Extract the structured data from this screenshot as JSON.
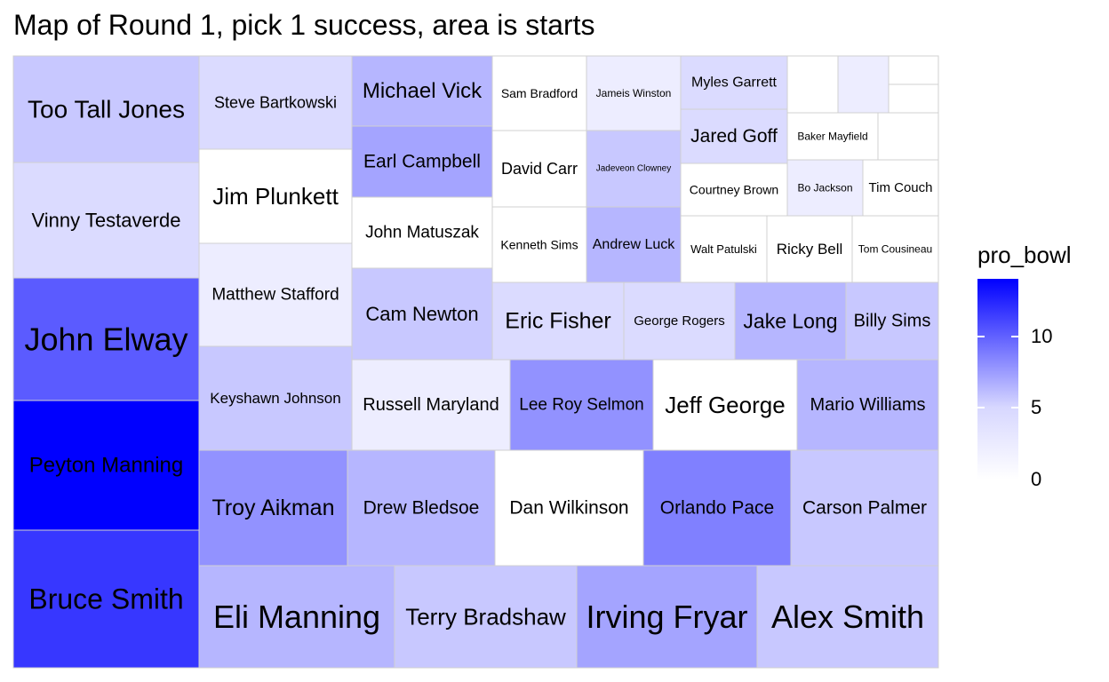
{
  "chart_data": {
    "type": "treemap",
    "title": "Map of Round 1, pick 1 success, area is starts",
    "area_measure": "starts",
    "color_variable": "pro_bowl",
    "legend": {
      "title": "pro_bowl",
      "placement": "right",
      "ticks": [
        "0",
        "5",
        "10"
      ],
      "range": [
        0,
        14
      ],
      "colors": {
        "low": "#ffffff",
        "high": "#0000ff"
      }
    },
    "tiles": [
      {
        "name": "Too Tall Jones",
        "pro_bowl": 3
      },
      {
        "name": "Vinny Testaverde",
        "pro_bowl": 2
      },
      {
        "name": "John Elway",
        "pro_bowl": 9
      },
      {
        "name": "Peyton Manning",
        "pro_bowl": 14
      },
      {
        "name": "Bruce Smith",
        "pro_bowl": 11
      },
      {
        "name": "Steve Bartkowski",
        "pro_bowl": 2
      },
      {
        "name": "Jim Plunkett",
        "pro_bowl": 0
      },
      {
        "name": "Matthew Stafford",
        "pro_bowl": 1
      },
      {
        "name": "Keyshawn Johnson",
        "pro_bowl": 3
      },
      {
        "name": "Michael Vick",
        "pro_bowl": 4
      },
      {
        "name": "Earl Campbell",
        "pro_bowl": 5
      },
      {
        "name": "John Matuszak",
        "pro_bowl": 0
      },
      {
        "name": "Cam Newton",
        "pro_bowl": 3
      },
      {
        "name": "Sam Bradford",
        "pro_bowl": 0
      },
      {
        "name": "Jameis Winston",
        "pro_bowl": 1
      },
      {
        "name": "David Carr",
        "pro_bowl": 0
      },
      {
        "name": "Jadeveon Clowney",
        "pro_bowl": 3
      },
      {
        "name": "Kenneth Sims",
        "pro_bowl": 0
      },
      {
        "name": "Andrew Luck",
        "pro_bowl": 4
      },
      {
        "name": "Myles Garrett",
        "pro_bowl": 2
      },
      {
        "name": "Jared Goff",
        "pro_bowl": 2
      },
      {
        "name": "Baker Mayfield",
        "pro_bowl": 0
      },
      {
        "name": "Courtney Brown",
        "pro_bowl": 0
      },
      {
        "name": "Bo Jackson",
        "pro_bowl": 1
      },
      {
        "name": "Tim Couch",
        "pro_bowl": 0
      },
      {
        "name": "Walt Patulski",
        "pro_bowl": 0
      },
      {
        "name": "Ricky Bell",
        "pro_bowl": 0
      },
      {
        "name": "Tom Cousineau",
        "pro_bowl": 0
      },
      {
        "name": "Eric Fisher",
        "pro_bowl": 2
      },
      {
        "name": "George Rogers",
        "pro_bowl": 2
      },
      {
        "name": "Jake Long",
        "pro_bowl": 4
      },
      {
        "name": "Billy Sims",
        "pro_bowl": 3
      },
      {
        "name": "Russell Maryland",
        "pro_bowl": 1
      },
      {
        "name": "Lee Roy Selmon",
        "pro_bowl": 6
      },
      {
        "name": "Jeff George",
        "pro_bowl": 0
      },
      {
        "name": "Mario Williams",
        "pro_bowl": 4
      },
      {
        "name": "Troy Aikman",
        "pro_bowl": 6
      },
      {
        "name": "Drew Bledsoe",
        "pro_bowl": 4
      },
      {
        "name": "Dan Wilkinson",
        "pro_bowl": 0
      },
      {
        "name": "Orlando Pace",
        "pro_bowl": 7
      },
      {
        "name": "Carson Palmer",
        "pro_bowl": 3
      },
      {
        "name": "Eli Manning",
        "pro_bowl": 4
      },
      {
        "name": "Terry Bradshaw",
        "pro_bowl": 3
      },
      {
        "name": "Irving Fryar",
        "pro_bowl": 5
      },
      {
        "name": "Alex Smith",
        "pro_bowl": 3
      },
      {
        "name": "",
        "pro_bowl": 0
      },
      {
        "name": "",
        "pro_bowl": 1
      },
      {
        "name": "",
        "pro_bowl": 0
      },
      {
        "name": "",
        "pro_bowl": 0
      },
      {
        "name": "",
        "pro_bowl": 0
      }
    ]
  }
}
